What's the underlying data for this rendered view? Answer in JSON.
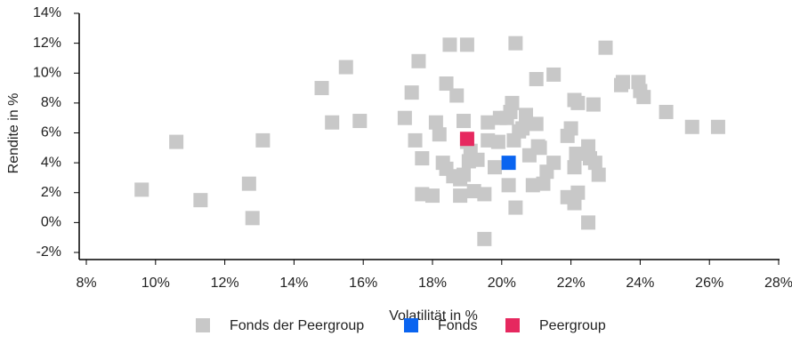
{
  "chart_data": {
    "type": "scatter",
    "xlabel": "Volatilität in %",
    "ylabel": "Rendite in %",
    "xlim": [
      8,
      28
    ],
    "ylim": [
      -2,
      14
    ],
    "xticks": [
      {
        "value": 8,
        "label": "8%"
      },
      {
        "value": 10,
        "label": "10%"
      },
      {
        "value": 12,
        "label": "12%"
      },
      {
        "value": 14,
        "label": "14%"
      },
      {
        "value": 16,
        "label": "16%"
      },
      {
        "value": 18,
        "label": "18%"
      },
      {
        "value": 20,
        "label": "20%"
      },
      {
        "value": 22,
        "label": "22%"
      },
      {
        "value": 24,
        "label": "24%"
      },
      {
        "value": 26,
        "label": "26%"
      },
      {
        "value": 28,
        "label": "28%"
      }
    ],
    "yticks": [
      {
        "value": -2,
        "label": "-2%"
      },
      {
        "value": 0,
        "label": "0%"
      },
      {
        "value": 2,
        "label": "2%"
      },
      {
        "value": 4,
        "label": "4%"
      },
      {
        "value": 6,
        "label": "6%"
      },
      {
        "value": 8,
        "label": "8%"
      },
      {
        "value": 10,
        "label": "10%"
      },
      {
        "value": 12,
        "label": "12%"
      },
      {
        "value": 14,
        "label": "14%"
      }
    ],
    "grid": false,
    "legend": "bottom",
    "series": [
      {
        "name": "Fonds der Peergroup",
        "color": "#c8c8c8",
        "x": [
          9.6,
          10.6,
          11.3,
          12.7,
          12.8,
          13.1,
          14.8,
          15.1,
          15.5,
          15.9,
          17.2,
          17.4,
          17.5,
          17.6,
          17.7,
          17.7,
          18.0,
          18.1,
          18.2,
          18.3,
          18.4,
          18.4,
          18.5,
          18.6,
          18.7,
          18.8,
          18.8,
          18.9,
          18.9,
          19.0,
          19.0,
          19.05,
          19.1,
          19.2,
          19.3,
          19.5,
          19.5,
          19.6,
          19.6,
          19.8,
          19.9,
          19.95,
          20.15,
          20.2,
          20.25,
          20.3,
          20.35,
          20.4,
          20.4,
          20.5,
          20.6,
          20.7,
          20.8,
          20.9,
          21.0,
          21.0,
          21.05,
          21.1,
          21.2,
          21.3,
          21.5,
          21.5,
          21.9,
          21.9,
          22.0,
          22.1,
          22.1,
          22.1,
          22.2,
          22.15,
          22.2,
          22.5,
          22.5,
          22.55,
          22.65,
          22.7,
          22.8,
          23.0,
          23.45,
          23.5,
          23.95,
          24.0,
          24.1,
          24.75,
          25.5,
          26.25
        ],
        "values": [
          2.2,
          5.4,
          1.5,
          2.6,
          0.3,
          5.5,
          9.0,
          6.7,
          10.4,
          6.8,
          7.0,
          8.7,
          5.5,
          10.8,
          4.3,
          1.9,
          1.8,
          6.7,
          5.9,
          4.0,
          3.6,
          9.3,
          11.9,
          3.1,
          8.5,
          2.9,
          1.8,
          3.2,
          6.8,
          5.4,
          11.9,
          4.1,
          4.8,
          2.1,
          4.2,
          1.9,
          -1.1,
          6.7,
          5.5,
          3.7,
          5.4,
          7.0,
          7.0,
          2.5,
          7.4,
          8.0,
          5.5,
          12.0,
          1.0,
          6.1,
          6.3,
          7.2,
          4.5,
          2.5,
          6.6,
          9.6,
          5.1,
          5.0,
          2.6,
          3.4,
          9.9,
          4.0,
          1.7,
          5.8,
          6.3,
          8.2,
          1.3,
          3.7,
          2.0,
          4.6,
          8.0,
          0.0,
          5.1,
          4.3,
          7.9,
          4.0,
          3.2,
          11.7,
          9.2,
          9.4,
          9.4,
          8.8,
          8.4,
          7.4,
          6.4,
          6.4
        ]
      },
      {
        "name": "Fonds",
        "color": "#0a64f0",
        "x": [
          20.2
        ],
        "values": [
          4.0
        ]
      },
      {
        "name": "Peergroup",
        "color": "#e6285f",
        "x": [
          19.0
        ],
        "values": [
          5.6
        ]
      }
    ]
  }
}
